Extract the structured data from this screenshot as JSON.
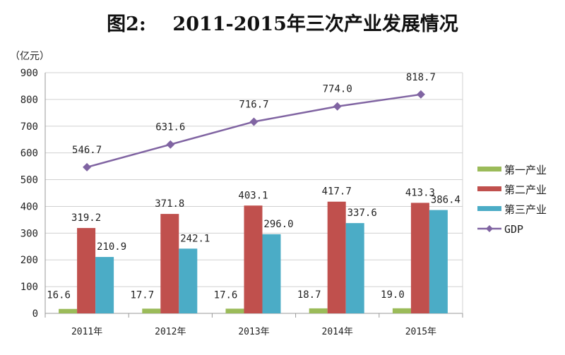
{
  "chart_data": {
    "type": "bar",
    "title": "图2:    2011-2015年三次产业发展情况",
    "ylabel": "（亿元）",
    "xlabel": "",
    "ylim": [
      0,
      900
    ],
    "yticks": [
      0,
      100,
      200,
      300,
      400,
      500,
      600,
      700,
      800,
      900
    ],
    "grid": true,
    "legend": "right",
    "categories": [
      "2011年",
      "2012年",
      "2013年",
      "2014年",
      "2015年"
    ],
    "series": [
      {
        "name": "第一产业",
        "kind": "bar",
        "color": "#9bbb59",
        "values": [
          16.6,
          17.7,
          17.6,
          18.7,
          19.0
        ],
        "labels": [
          "16.6",
          "17.7",
          "17.6",
          "18.7",
          "19.0"
        ]
      },
      {
        "name": "第二产业",
        "kind": "bar",
        "color": "#c0504d",
        "values": [
          319.2,
          371.8,
          403.1,
          417.7,
          413.3
        ],
        "labels": [
          "319.2",
          "371.8",
          "403.1",
          "417.7",
          "413.3"
        ]
      },
      {
        "name": "第三产业",
        "kind": "bar",
        "color": "#4bacc6",
        "values": [
          210.9,
          242.1,
          296.0,
          337.6,
          386.4
        ],
        "labels": [
          "210.9",
          "242.1",
          "296.0",
          "337.6",
          "386.4"
        ]
      },
      {
        "name": "GDP",
        "kind": "line",
        "color": "#8064a2",
        "values": [
          546.7,
          631.6,
          716.7,
          774.0,
          818.7
        ],
        "labels": [
          "546.7",
          "631.6",
          "716.7",
          "774.0",
          "818.7"
        ]
      }
    ]
  }
}
